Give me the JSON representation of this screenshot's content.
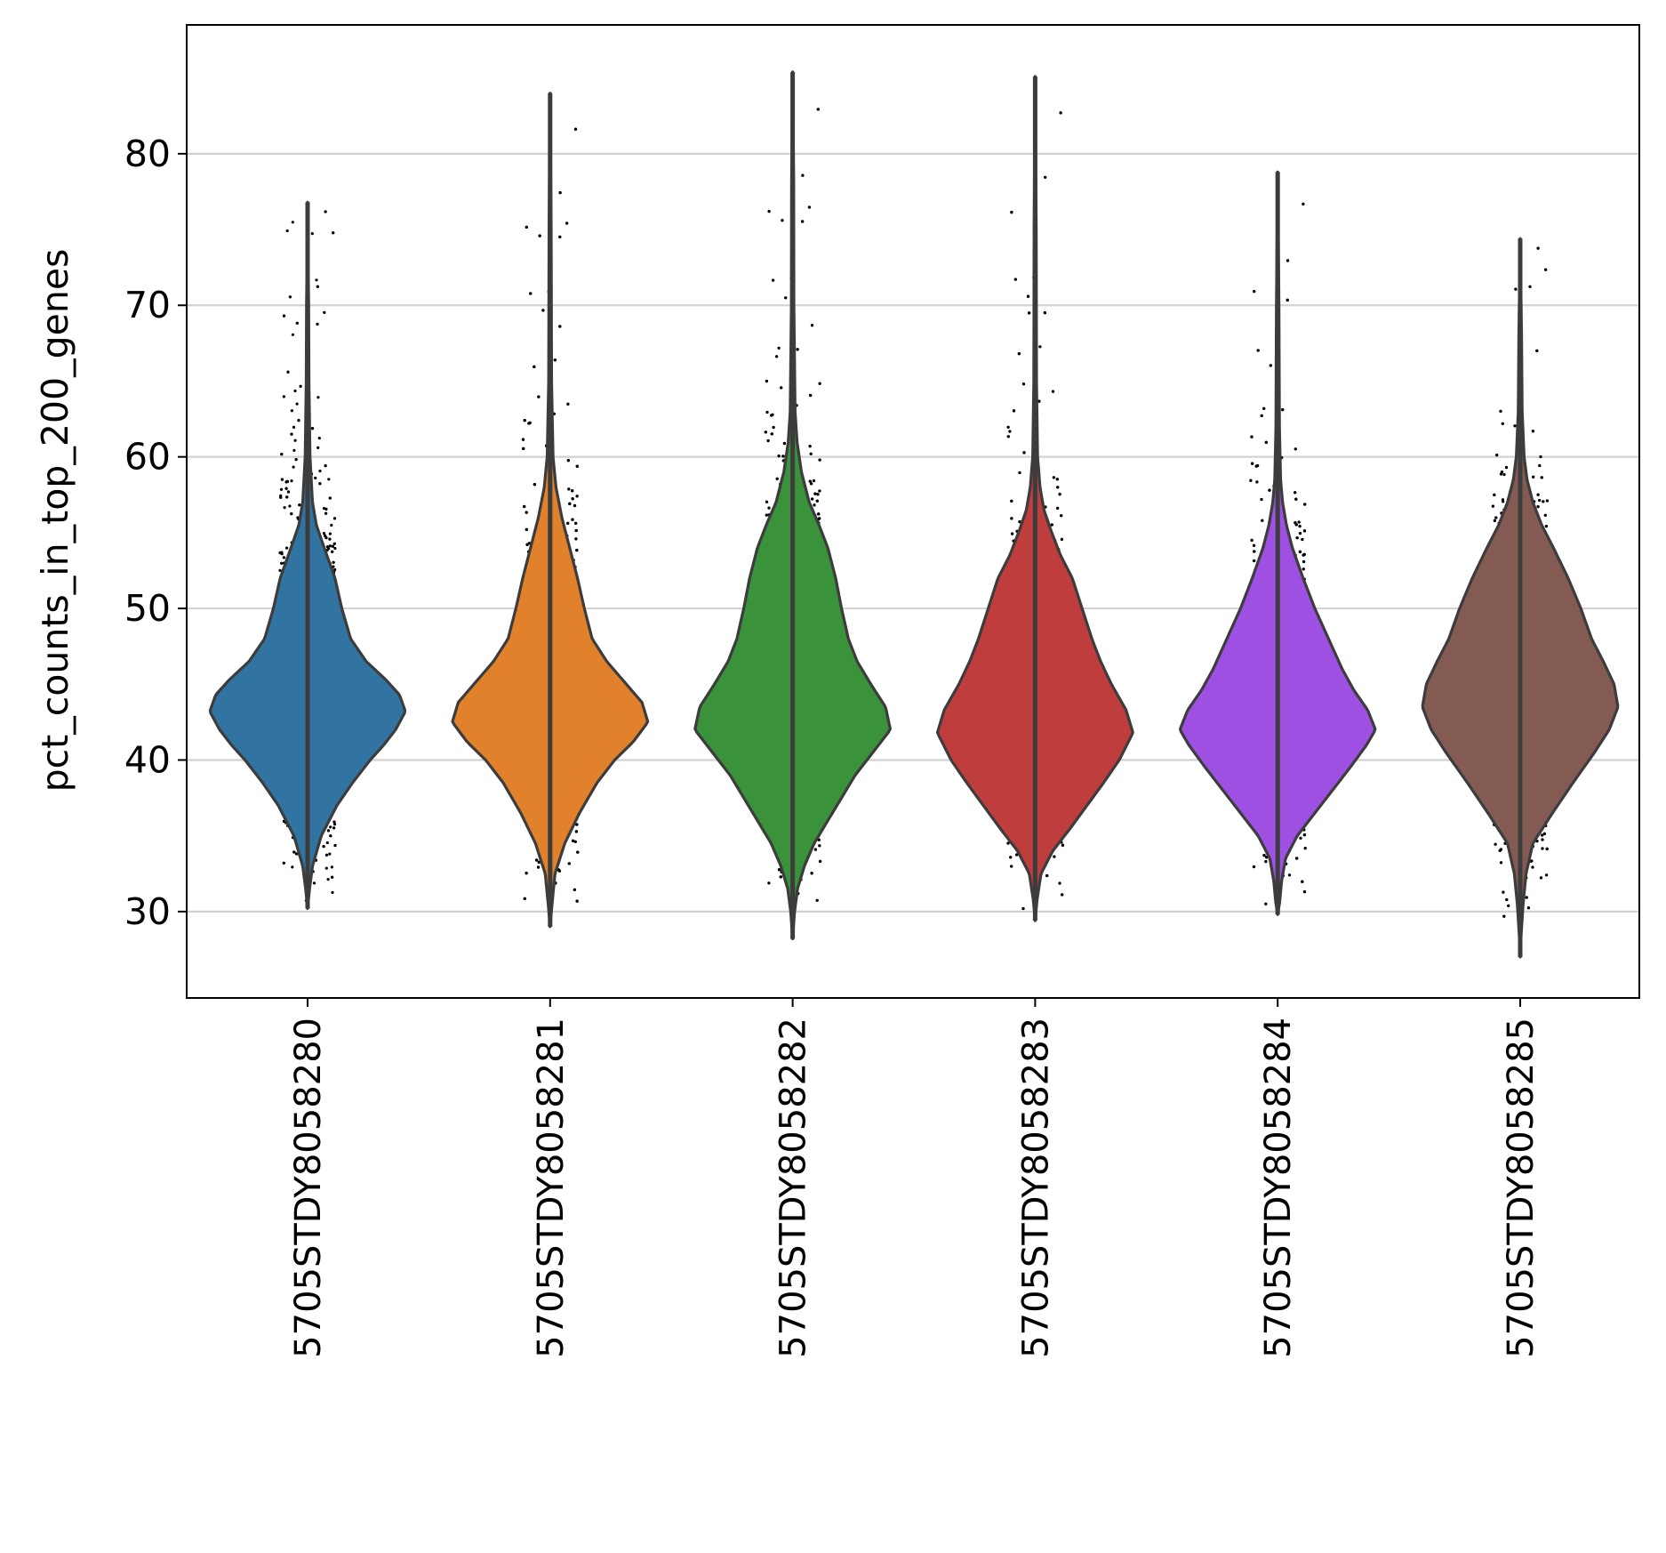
{
  "chart_data": {
    "type": "violin",
    "title": "",
    "xlabel": "",
    "ylabel": "pct_counts_in_top_200_genes",
    "ylim": [
      24.3,
      88.5
    ],
    "yticks": [
      30,
      40,
      50,
      60,
      70,
      80
    ],
    "grid": "horizontal",
    "categories": [
      "5705STDY8058280",
      "5705STDY8058281",
      "5705STDY8058282",
      "5705STDY8058283",
      "5705STDY8058284",
      "5705STDY8058285"
    ],
    "series": [
      {
        "category": "5705STDY8058280",
        "color": "#3274a1",
        "min": 30.2,
        "max": 76.8,
        "mode": 43.2,
        "profile": [
          [
            30.2,
            0.0
          ],
          [
            31.5,
            0.02
          ],
          [
            33,
            0.05
          ],
          [
            35,
            0.14
          ],
          [
            37,
            0.3
          ],
          [
            38.5,
            0.46
          ],
          [
            40,
            0.64
          ],
          [
            41,
            0.78
          ],
          [
            42,
            0.9
          ],
          [
            43.2,
            1.0
          ],
          [
            44.3,
            0.94
          ],
          [
            45.3,
            0.8
          ],
          [
            46.5,
            0.6
          ],
          [
            48,
            0.44
          ],
          [
            50,
            0.35
          ],
          [
            52,
            0.28
          ],
          [
            54,
            0.17
          ],
          [
            55.5,
            0.09
          ],
          [
            57,
            0.05
          ],
          [
            60,
            0.025
          ],
          [
            65,
            0.014
          ],
          [
            70,
            0.011
          ],
          [
            76.8,
            0.0
          ]
        ]
      },
      {
        "category": "5705STDY8058281",
        "color": "#e1812c",
        "min": 29.0,
        "max": 84.0,
        "mode": 42.5,
        "profile": [
          [
            29.0,
            0.0
          ],
          [
            30.5,
            0.02
          ],
          [
            32.5,
            0.05
          ],
          [
            34.5,
            0.15
          ],
          [
            36.5,
            0.3
          ],
          [
            38.5,
            0.48
          ],
          [
            40,
            0.66
          ],
          [
            41.2,
            0.85
          ],
          [
            42.5,
            1.0
          ],
          [
            43.8,
            0.94
          ],
          [
            45,
            0.78
          ],
          [
            46.5,
            0.58
          ],
          [
            48,
            0.43
          ],
          [
            50,
            0.35
          ],
          [
            52,
            0.28
          ],
          [
            54,
            0.2
          ],
          [
            56,
            0.12
          ],
          [
            58,
            0.06
          ],
          [
            60,
            0.03
          ],
          [
            65,
            0.015
          ],
          [
            75,
            0.011
          ],
          [
            84,
            0.0
          ]
        ]
      },
      {
        "category": "5705STDY8058282",
        "color": "#3a923a",
        "min": 28.2,
        "max": 85.4,
        "mode": 42.0,
        "profile": [
          [
            28.2,
            0.0
          ],
          [
            30,
            0.02
          ],
          [
            31.5,
            0.05
          ],
          [
            33,
            0.12
          ],
          [
            34.5,
            0.22
          ],
          [
            36,
            0.36
          ],
          [
            37.5,
            0.5
          ],
          [
            39,
            0.64
          ],
          [
            40.5,
            0.82
          ],
          [
            42,
            1.0
          ],
          [
            43.5,
            0.95
          ],
          [
            45,
            0.8
          ],
          [
            46.5,
            0.66
          ],
          [
            48,
            0.57
          ],
          [
            50,
            0.5
          ],
          [
            52,
            0.44
          ],
          [
            54,
            0.36
          ],
          [
            55.5,
            0.27
          ],
          [
            57,
            0.17
          ],
          [
            59,
            0.09
          ],
          [
            61,
            0.045
          ],
          [
            63,
            0.025
          ],
          [
            70,
            0.013
          ],
          [
            78,
            0.011
          ],
          [
            85.4,
            0.0
          ]
        ]
      },
      {
        "category": "5705STDY8058283",
        "color": "#c03d3e",
        "min": 29.4,
        "max": 85.1,
        "mode": 41.8,
        "profile": [
          [
            29.4,
            0.0
          ],
          [
            30.8,
            0.02
          ],
          [
            32.5,
            0.06
          ],
          [
            34,
            0.18
          ],
          [
            35.5,
            0.36
          ],
          [
            37,
            0.53
          ],
          [
            38.5,
            0.7
          ],
          [
            40,
            0.86
          ],
          [
            41.8,
            1.0
          ],
          [
            43.3,
            0.93
          ],
          [
            45,
            0.78
          ],
          [
            46.5,
            0.67
          ],
          [
            48,
            0.58
          ],
          [
            50,
            0.48
          ],
          [
            52,
            0.38
          ],
          [
            53.5,
            0.26
          ],
          [
            55,
            0.17
          ],
          [
            56.5,
            0.09
          ],
          [
            58,
            0.05
          ],
          [
            60,
            0.025
          ],
          [
            65,
            0.014
          ],
          [
            75,
            0.011
          ],
          [
            85.1,
            0.0
          ]
        ]
      },
      {
        "category": "5705STDY8058284",
        "color": "#9d50e2",
        "min": 29.8,
        "max": 78.8,
        "mode": 42.0,
        "profile": [
          [
            29.8,
            0.0
          ],
          [
            30.6,
            0.02
          ],
          [
            32,
            0.04
          ],
          [
            33.5,
            0.08
          ],
          [
            35,
            0.2
          ],
          [
            36.5,
            0.38
          ],
          [
            38,
            0.56
          ],
          [
            39.5,
            0.74
          ],
          [
            41,
            0.91
          ],
          [
            42,
            1.0
          ],
          [
            43.3,
            0.92
          ],
          [
            44.6,
            0.78
          ],
          [
            46,
            0.66
          ],
          [
            48,
            0.52
          ],
          [
            50,
            0.38
          ],
          [
            52,
            0.26
          ],
          [
            54,
            0.15
          ],
          [
            55.5,
            0.09
          ],
          [
            57,
            0.05
          ],
          [
            58.5,
            0.03
          ],
          [
            62,
            0.018
          ],
          [
            70,
            0.013
          ],
          [
            78.8,
            0.0
          ]
        ]
      },
      {
        "category": "5705STDY8058285",
        "color": "#845b53",
        "min": 27.0,
        "max": 74.4,
        "mode": 43.5,
        "profile": [
          [
            27.0,
            0.0
          ],
          [
            28.5,
            0.01
          ],
          [
            30.5,
            0.03
          ],
          [
            32.5,
            0.06
          ],
          [
            34.5,
            0.13
          ],
          [
            36.5,
            0.33
          ],
          [
            38.5,
            0.54
          ],
          [
            40.5,
            0.76
          ],
          [
            42,
            0.91
          ],
          [
            43.5,
            1.0
          ],
          [
            45,
            0.96
          ],
          [
            46.5,
            0.85
          ],
          [
            48,
            0.73
          ],
          [
            50,
            0.62
          ],
          [
            52,
            0.49
          ],
          [
            54,
            0.34
          ],
          [
            55.5,
            0.22
          ],
          [
            57,
            0.13
          ],
          [
            58.5,
            0.07
          ],
          [
            60,
            0.04
          ],
          [
            63,
            0.02
          ],
          [
            68,
            0.014
          ],
          [
            74.4,
            0.0
          ]
        ]
      }
    ]
  }
}
